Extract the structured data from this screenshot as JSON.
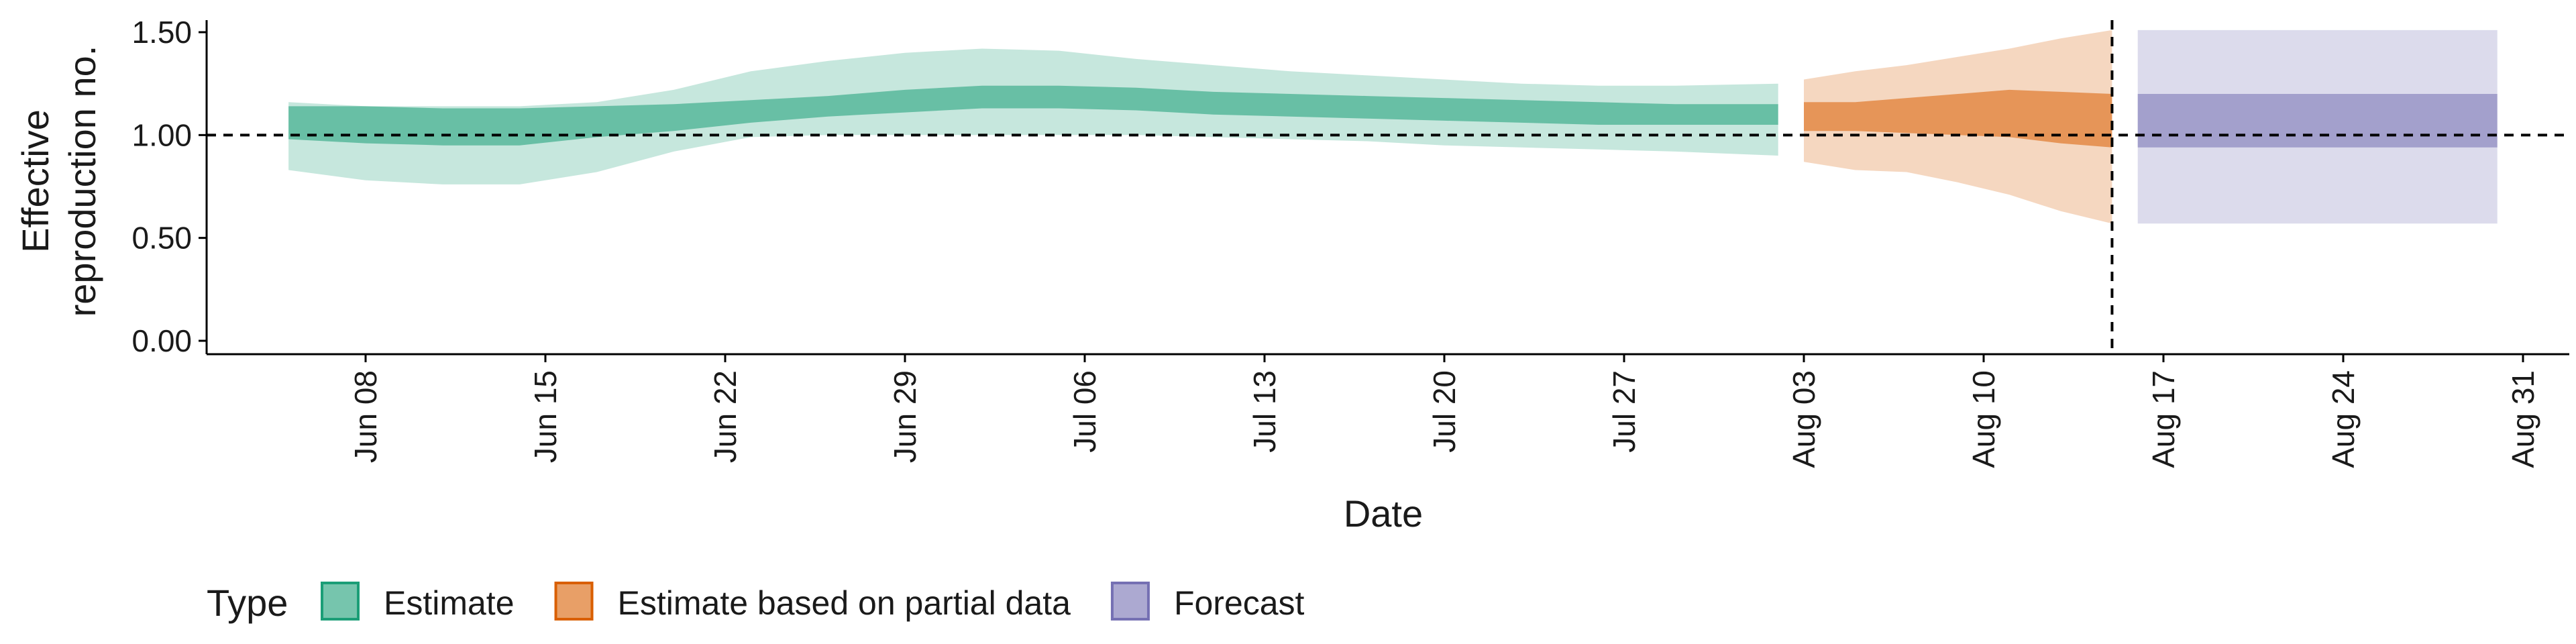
{
  "chart_data": {
    "type": "area",
    "xlabel": "Date",
    "ylabel_lines": [
      "Effective",
      "reproduction no."
    ],
    "ylim": [
      0,
      1.55
    ],
    "yticks": [
      "0.00",
      "0.50",
      "1.00",
      "1.50"
    ],
    "ytick_values": [
      0,
      0.5,
      1.0,
      1.5
    ],
    "xlim": [
      "2020-06-01",
      "2020-09-01"
    ],
    "xticks": [
      "Jun 08",
      "Jun 15",
      "Jun 22",
      "Jun 29",
      "Jul 06",
      "Jul 13",
      "Jul 20",
      "Jul 27",
      "Aug 03",
      "Aug 10",
      "Aug 17",
      "Aug 24",
      "Aug 31"
    ],
    "xtick_dates": [
      "2020-06-08",
      "2020-06-15",
      "2020-06-22",
      "2020-06-29",
      "2020-07-06",
      "2020-07-13",
      "2020-07-20",
      "2020-07-27",
      "2020-08-03",
      "2020-08-10",
      "2020-08-17",
      "2020-08-24",
      "2020-08-31"
    ],
    "reference_line": {
      "y": 1.0,
      "style": "dashed"
    },
    "vertical_line": {
      "date": "2020-08-15",
      "style": "dashed"
    },
    "legend": {
      "title": "Type",
      "position": "bottom-left"
    },
    "series": [
      {
        "name": "Estimate",
        "fill": "#1b9e77",
        "x": [
          "2020-06-05",
          "2020-06-08",
          "2020-06-11",
          "2020-06-14",
          "2020-06-17",
          "2020-06-20",
          "2020-06-23",
          "2020-06-26",
          "2020-06-29",
          "2020-07-02",
          "2020-07-05",
          "2020-07-08",
          "2020-07-11",
          "2020-07-14",
          "2020-07-17",
          "2020-07-20",
          "2020-07-23",
          "2020-07-26",
          "2020-07-29",
          "2020-08-02"
        ],
        "lower_90": [
          0.83,
          0.78,
          0.76,
          0.76,
          0.82,
          0.92,
          0.99,
          1.0,
          1.0,
          1.0,
          1.0,
          1.0,
          0.99,
          0.98,
          0.97,
          0.95,
          0.94,
          0.93,
          0.92,
          0.9
        ],
        "lower_50": [
          0.98,
          0.96,
          0.95,
          0.95,
          0.99,
          1.02,
          1.06,
          1.09,
          1.11,
          1.13,
          1.13,
          1.12,
          1.1,
          1.09,
          1.08,
          1.07,
          1.06,
          1.05,
          1.05,
          1.05
        ],
        "upper_50": [
          1.14,
          1.14,
          1.13,
          1.13,
          1.14,
          1.15,
          1.17,
          1.19,
          1.22,
          1.24,
          1.24,
          1.23,
          1.21,
          1.2,
          1.19,
          1.18,
          1.17,
          1.16,
          1.15,
          1.15
        ],
        "upper_90": [
          1.16,
          1.14,
          1.14,
          1.14,
          1.16,
          1.22,
          1.31,
          1.36,
          1.4,
          1.42,
          1.41,
          1.37,
          1.34,
          1.31,
          1.29,
          1.27,
          1.25,
          1.24,
          1.24,
          1.25
        ]
      },
      {
        "name": "Estimate based on partial data",
        "fill": "#d95f02",
        "x": [
          "2020-08-03",
          "2020-08-05",
          "2020-08-07",
          "2020-08-09",
          "2020-08-11",
          "2020-08-13",
          "2020-08-15"
        ],
        "lower_90": [
          0.87,
          0.83,
          0.82,
          0.77,
          0.71,
          0.63,
          0.57
        ],
        "lower_50": [
          1.02,
          1.02,
          1.01,
          1.0,
          0.99,
          0.96,
          0.94
        ],
        "upper_50": [
          1.16,
          1.16,
          1.18,
          1.2,
          1.22,
          1.21,
          1.2
        ],
        "upper_90": [
          1.27,
          1.31,
          1.34,
          1.38,
          1.42,
          1.47,
          1.51
        ]
      },
      {
        "name": "Forecast",
        "fill": "#7570b3",
        "x": [
          "2020-08-16",
          "2020-08-30"
        ],
        "lower_90": [
          0.57,
          0.57
        ],
        "lower_50": [
          0.94,
          0.94
        ],
        "upper_50": [
          1.2,
          1.2
        ],
        "upper_90": [
          1.51,
          1.51
        ]
      }
    ]
  }
}
